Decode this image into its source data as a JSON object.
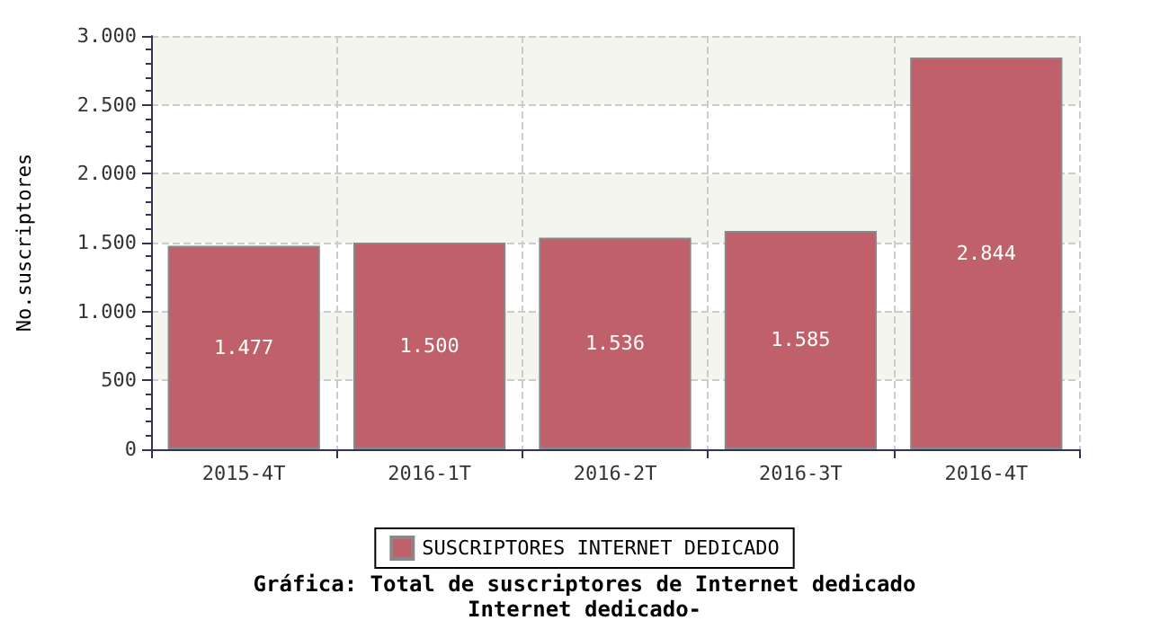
{
  "chart_data": {
    "type": "bar",
    "title": "Gráfica: Total de suscriptores de Internet dedicado",
    "subtitle": "Internet dedicado-",
    "ylabel": "No.suscriptores",
    "categories": [
      "2015-4T",
      "2016-1T",
      "2016-2T",
      "2016-3T",
      "2016-4T"
    ],
    "series": [
      {
        "name": "SUSCRIPTORES INTERNET DEDICADO",
        "color": "#c0606a",
        "values": [
          1477,
          1500,
          1536,
          1585,
          2844
        ],
        "value_labels": [
          "1.477",
          "1.500",
          "1.536",
          "1.585",
          "2.844"
        ]
      }
    ],
    "ylim": [
      0,
      3000
    ],
    "yticks": [
      {
        "value": 0,
        "label": "0"
      },
      {
        "value": 500,
        "label": "500"
      },
      {
        "value": 1000,
        "label": "1.000"
      },
      {
        "value": 1500,
        "label": "1.500"
      },
      {
        "value": 2000,
        "label": "2.000"
      },
      {
        "value": 2500,
        "label": "2.500"
      },
      {
        "value": 3000,
        "label": "3.000"
      }
    ],
    "grid": true,
    "legend": "bottom"
  }
}
